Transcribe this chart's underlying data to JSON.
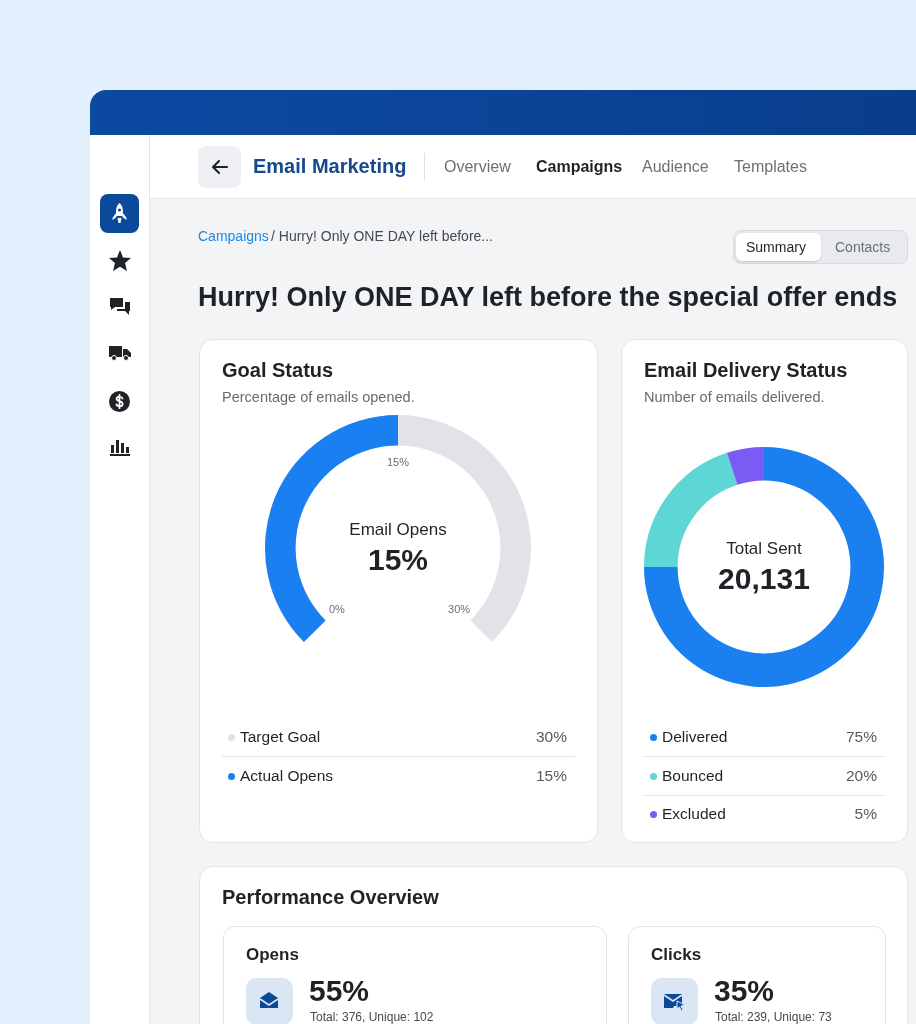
{
  "chart_data": [
    {
      "type": "other",
      "title": "Hurry! Only ONE DAY left before the special offer ends",
      "annotations": [
        "Email Marketing",
        "Overview",
        "Campaigns",
        "Audience",
        "Templates",
        "Campaigns",
        "/ Hurry! Only ONE DAY left before...",
        "Summary",
        "Contacts"
      ]
    },
    {
      "type": "donut",
      "title": "Goal Status",
      "subtitle": "Percentage of emails opened.",
      "categories": [
        "Target Goal",
        "Actual Opens"
      ],
      "values": [
        30,
        15
      ],
      "colors": [
        "#e2e3e8",
        "#1a7ff0"
      ],
      "value_labels": [
        "30%",
        "15%"
      ],
      "legend": "bottom",
      "annotations": [
        "Email Opens",
        "15%",
        "0%",
        "15%",
        "30%"
      ]
    },
    {
      "type": "donut",
      "title": "Email Delivery Status",
      "subtitle": "Number of emails delivered.",
      "categories": [
        "Delivered",
        "Bounced",
        "Excluded"
      ],
      "values": [
        75,
        20,
        5
      ],
      "colors": [
        "#1a80f0",
        "#5ed6d6",
        "#7a5cf5"
      ],
      "value_labels": [
        "75%",
        "20%",
        "5%"
      ],
      "legend": "bottom",
      "annotations": [
        "Total Sent",
        "20,131"
      ]
    },
    {
      "type": "other",
      "title": "Performance Overview",
      "annotations": [
        "Opens",
        "55%",
        "Total: 376, Unique: 102",
        "Clicks",
        "35%",
        "Total: 239, Unique: 73"
      ]
    }
  ]
}
